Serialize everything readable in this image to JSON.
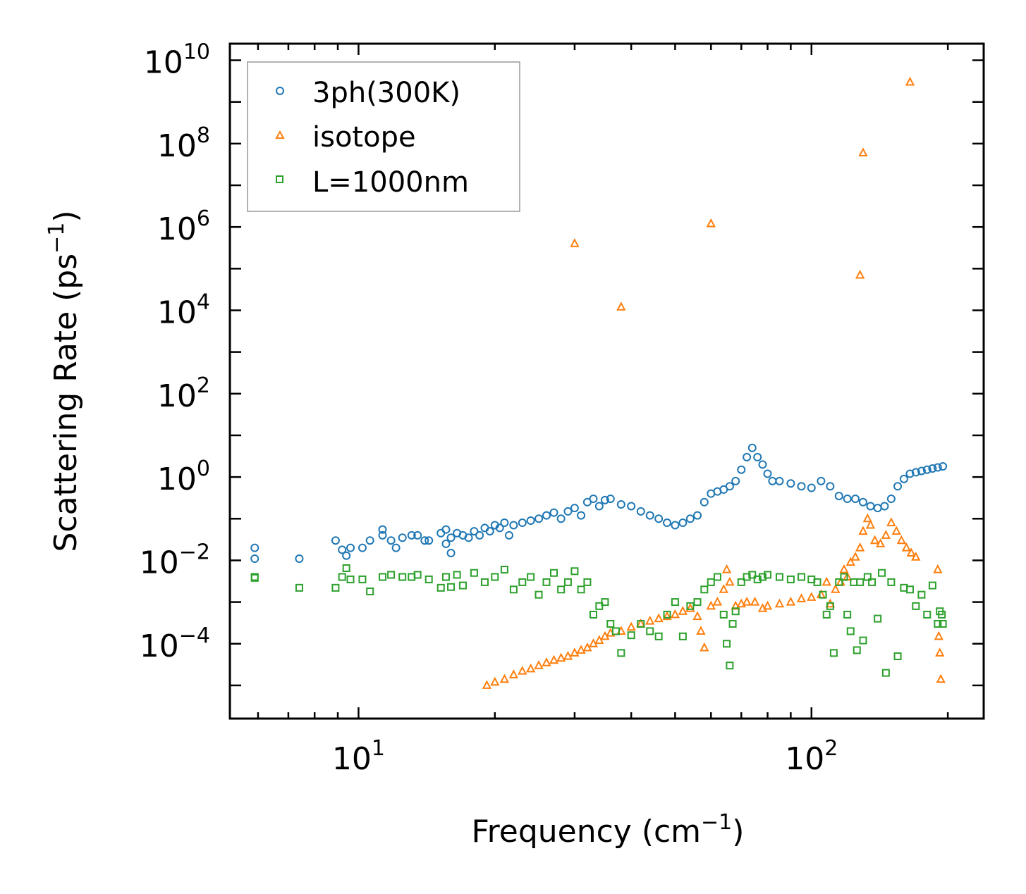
{
  "chart_data": {
    "type": "scatter",
    "xscale": "log",
    "yscale": "log",
    "xlim": [
      5.2,
      240
    ],
    "ylim": [
      1.6e-06,
      25000000000
    ],
    "xlabel": {
      "base": "Frequency (cm",
      "sup": "−1",
      "tail": ")"
    },
    "ylabel": {
      "base": "Scattering Rate (ps",
      "sup": "−1",
      "tail": ")"
    },
    "xticks": [
      {
        "value": 10,
        "base": "10",
        "exp": "1"
      },
      {
        "value": 100,
        "base": "10",
        "exp": "2"
      }
    ],
    "yticks": [
      {
        "value": 0.0001,
        "base": "10",
        "exp": "−4"
      },
      {
        "value": 0.01,
        "base": "10",
        "exp": "−2"
      },
      {
        "value": 1,
        "base": "10",
        "exp": "0"
      },
      {
        "value": 100,
        "base": "10",
        "exp": "2"
      },
      {
        "value": 10000,
        "base": "10",
        "exp": "4"
      },
      {
        "value": 1000000,
        "base": "10",
        "exp": "6"
      },
      {
        "value": 100000000,
        "base": "10",
        "exp": "8"
      },
      {
        "value": 10000000000,
        "base": "10",
        "exp": "10"
      }
    ],
    "legend": {
      "position": "top-left"
    },
    "series": [
      {
        "name": "3ph(300K)",
        "marker": "circle",
        "color": "#1f77b4",
        "points": [
          [
            5.9,
            0.02
          ],
          [
            5.9,
            0.011
          ],
          [
            7.4,
            0.011
          ],
          [
            8.9,
            0.03
          ],
          [
            9.2,
            0.018
          ],
          [
            9.4,
            0.013
          ],
          [
            9.6,
            0.02
          ],
          [
            10.2,
            0.02
          ],
          [
            10.6,
            0.03
          ],
          [
            11.3,
            0.055
          ],
          [
            11.3,
            0.04
          ],
          [
            11.8,
            0.03
          ],
          [
            12.1,
            0.02
          ],
          [
            12.5,
            0.035
          ],
          [
            13.1,
            0.04
          ],
          [
            13.5,
            0.04
          ],
          [
            14.0,
            0.03
          ],
          [
            14.3,
            0.03
          ],
          [
            15.2,
            0.045
          ],
          [
            15.6,
            0.055
          ],
          [
            15.6,
            0.025
          ],
          [
            16.0,
            0.035
          ],
          [
            16.0,
            0.015
          ],
          [
            16.5,
            0.045
          ],
          [
            17.0,
            0.04
          ],
          [
            17.5,
            0.035
          ],
          [
            18.0,
            0.05
          ],
          [
            18.5,
            0.04
          ],
          [
            19.0,
            0.06
          ],
          [
            19.5,
            0.05
          ],
          [
            20.0,
            0.07
          ],
          [
            20.5,
            0.06
          ],
          [
            21.0,
            0.08
          ],
          [
            21.5,
            0.04
          ],
          [
            22.0,
            0.07
          ],
          [
            23.0,
            0.08
          ],
          [
            24.0,
            0.09
          ],
          [
            25.0,
            0.1
          ],
          [
            26.0,
            0.12
          ],
          [
            27.0,
            0.14
          ],
          [
            28.0,
            0.1
          ],
          [
            29.0,
            0.15
          ],
          [
            30.0,
            0.18
          ],
          [
            31.0,
            0.12
          ],
          [
            32.0,
            0.25
          ],
          [
            33.0,
            0.3
          ],
          [
            34.0,
            0.2
          ],
          [
            35.0,
            0.28
          ],
          [
            36.0,
            0.3
          ],
          [
            38.0,
            0.22
          ],
          [
            40.0,
            0.2
          ],
          [
            42.0,
            0.15
          ],
          [
            44.0,
            0.12
          ],
          [
            46.0,
            0.1
          ],
          [
            48.0,
            0.08
          ],
          [
            50.0,
            0.07
          ],
          [
            52.0,
            0.08
          ],
          [
            54.0,
            0.1
          ],
          [
            56.0,
            0.12
          ],
          [
            58.0,
            0.25
          ],
          [
            60.0,
            0.4
          ],
          [
            62.0,
            0.45
          ],
          [
            64.0,
            0.5
          ],
          [
            66.0,
            0.6
          ],
          [
            68.0,
            0.8
          ],
          [
            70.0,
            1.5
          ],
          [
            72.0,
            3.0
          ],
          [
            74.0,
            5.0
          ],
          [
            76.0,
            3.0
          ],
          [
            78.0,
            2.0
          ],
          [
            80.0,
            1.2
          ],
          [
            82.0,
            0.8
          ],
          [
            85.0,
            0.8
          ],
          [
            90.0,
            0.7
          ],
          [
            95.0,
            0.6
          ],
          [
            100.0,
            0.55
          ],
          [
            105.0,
            0.8
          ],
          [
            110.0,
            0.6
          ],
          [
            115.0,
            0.35
          ],
          [
            120.0,
            0.3
          ],
          [
            125.0,
            0.3
          ],
          [
            130.0,
            0.25
          ],
          [
            135.0,
            0.2
          ],
          [
            140.0,
            0.18
          ],
          [
            145.0,
            0.2
          ],
          [
            150.0,
            0.3
          ],
          [
            155.0,
            0.6
          ],
          [
            160.0,
            0.9
          ],
          [
            165.0,
            1.2
          ],
          [
            170.0,
            1.3
          ],
          [
            175.0,
            1.4
          ],
          [
            180.0,
            1.5
          ],
          [
            185.0,
            1.6
          ],
          [
            190.0,
            1.7
          ],
          [
            195.0,
            1.8
          ]
        ]
      },
      {
        "name": "isotope",
        "marker": "triangle",
        "color": "#ff7f0e",
        "points": [
          [
            19.2,
            1e-05
          ],
          [
            20.0,
            1.2e-05
          ],
          [
            21.0,
            1.4e-05
          ],
          [
            22.0,
            1.8e-05
          ],
          [
            23.0,
            2.2e-05
          ],
          [
            24.0,
            2.5e-05
          ],
          [
            25.0,
            3e-05
          ],
          [
            26.0,
            3.5e-05
          ],
          [
            27.0,
            4e-05
          ],
          [
            28.0,
            4.5e-05
          ],
          [
            29.0,
            5e-05
          ],
          [
            30.0,
            6e-05
          ],
          [
            31.0,
            7e-05
          ],
          [
            32.0,
            8e-05
          ],
          [
            33.0,
            0.0001
          ],
          [
            34.0,
            0.00012
          ],
          [
            35.0,
            0.00015
          ],
          [
            36.0,
            0.00018
          ],
          [
            38.0,
            0.0002
          ],
          [
            40.0,
            0.00025
          ],
          [
            42.0,
            0.0003
          ],
          [
            44.0,
            0.00035
          ],
          [
            46.0,
            0.0004
          ],
          [
            48.0,
            0.00045
          ],
          [
            50.0,
            0.0005
          ],
          [
            52.0,
            0.0006
          ],
          [
            54.0,
            0.0007
          ],
          [
            56.0,
            0.00045
          ],
          [
            57.0,
            0.0002
          ],
          [
            58.0,
            8e-05
          ],
          [
            60.0,
            0.0008
          ],
          [
            62.0,
            0.001
          ],
          [
            64.0,
            0.002
          ],
          [
            65.0,
            0.006
          ],
          [
            66.0,
            0.003
          ],
          [
            68.0,
            0.0008
          ],
          [
            70.0,
            0.0009
          ],
          [
            72.0,
            0.001
          ],
          [
            75.0,
            0.001
          ],
          [
            78.0,
            0.0007
          ],
          [
            80.0,
            0.0008
          ],
          [
            85.0,
            0.0009
          ],
          [
            90.0,
            0.001
          ],
          [
            95.0,
            0.0012
          ],
          [
            100.0,
            0.0013
          ],
          [
            105.0,
            0.0015
          ],
          [
            108.0,
            0.003
          ],
          [
            110.0,
            0.0009
          ],
          [
            113.0,
            0.002
          ],
          [
            116.0,
            0.003
          ],
          [
            118.0,
            0.006
          ],
          [
            120.0,
            0.004
          ],
          [
            122.0,
            0.009
          ],
          [
            125.0,
            0.012
          ],
          [
            128.0,
            0.02
          ],
          [
            130.0,
            0.05
          ],
          [
            133.0,
            0.1
          ],
          [
            135.0,
            0.07
          ],
          [
            138.0,
            0.03
          ],
          [
            142.0,
            0.025
          ],
          [
            146.0,
            0.04
          ],
          [
            150.0,
            0.08
          ],
          [
            154.0,
            0.05
          ],
          [
            158.0,
            0.03
          ],
          [
            162.0,
            0.02
          ],
          [
            166.0,
            0.015
          ],
          [
            170.0,
            0.012
          ],
          [
            30.0,
            400000
          ],
          [
            38.0,
            12000
          ],
          [
            60.0,
            1200000
          ],
          [
            128.0,
            70000
          ],
          [
            130.0,
            60000000
          ],
          [
            165.0,
            3000000000
          ],
          [
            190.0,
            0.006
          ],
          [
            192.0,
            6e-05
          ],
          [
            193.0,
            1.4e-05
          ],
          [
            191.0,
            0.00015
          ]
        ]
      },
      {
        "name": "L=1000nm",
        "marker": "square",
        "color": "#2ca02c",
        "points": [
          [
            5.9,
            0.004
          ],
          [
            5.9,
            0.0038
          ],
          [
            7.4,
            0.0022
          ],
          [
            8.9,
            0.0022
          ],
          [
            9.2,
            0.004
          ],
          [
            9.4,
            0.0065
          ],
          [
            9.6,
            0.0035
          ],
          [
            10.2,
            0.0035
          ],
          [
            10.6,
            0.0018
          ],
          [
            11.3,
            0.004
          ],
          [
            11.8,
            0.0045
          ],
          [
            12.5,
            0.004
          ],
          [
            13.1,
            0.004
          ],
          [
            13.5,
            0.0045
          ],
          [
            14.3,
            0.0035
          ],
          [
            15.2,
            0.0022
          ],
          [
            15.6,
            0.004
          ],
          [
            16.0,
            0.0023
          ],
          [
            16.5,
            0.0045
          ],
          [
            17.0,
            0.0025
          ],
          [
            18.0,
            0.005
          ],
          [
            19.0,
            0.003
          ],
          [
            20.0,
            0.004
          ],
          [
            21.0,
            0.006
          ],
          [
            22.0,
            0.002
          ],
          [
            23.0,
            0.003
          ],
          [
            24.0,
            0.004
          ],
          [
            25.0,
            0.0015
          ],
          [
            26.0,
            0.003
          ],
          [
            27.0,
            0.005
          ],
          [
            28.0,
            0.002
          ],
          [
            29.0,
            0.003
          ],
          [
            30.0,
            0.0055
          ],
          [
            31.0,
            0.002
          ],
          [
            32.0,
            0.003
          ],
          [
            33.0,
            0.0005
          ],
          [
            34.0,
            0.0008
          ],
          [
            35.0,
            0.001
          ],
          [
            36.0,
            0.0003
          ],
          [
            37.0,
            0.0002
          ],
          [
            38.0,
            6e-05
          ],
          [
            40.0,
            0.00016
          ],
          [
            42.0,
            0.0003
          ],
          [
            44.0,
            0.0002
          ],
          [
            46.0,
            0.00015
          ],
          [
            48.0,
            0.0005
          ],
          [
            50.0,
            0.001
          ],
          [
            52.0,
            0.00015
          ],
          [
            54.0,
            0.0008
          ],
          [
            56.0,
            0.001
          ],
          [
            58.0,
            0.002
          ],
          [
            60.0,
            0.003
          ],
          [
            62.0,
            0.004
          ],
          [
            64.0,
            0.0005
          ],
          [
            65.0,
            0.0001
          ],
          [
            66.0,
            3e-05
          ],
          [
            67.0,
            0.0003
          ],
          [
            68.0,
            0.0006
          ],
          [
            70.0,
            0.003
          ],
          [
            72.0,
            0.004
          ],
          [
            74.0,
            0.0045
          ],
          [
            76.0,
            0.0035
          ],
          [
            78.0,
            0.004
          ],
          [
            80.0,
            0.0045
          ],
          [
            85.0,
            0.004
          ],
          [
            90.0,
            0.0035
          ],
          [
            95.0,
            0.004
          ],
          [
            100.0,
            0.0035
          ],
          [
            103.0,
            0.003
          ],
          [
            106.0,
            0.0015
          ],
          [
            108.0,
            0.0005
          ],
          [
            110.0,
            0.0008
          ],
          [
            112.0,
            6e-05
          ],
          [
            115.0,
            0.003
          ],
          [
            118.0,
            0.004
          ],
          [
            120.0,
            0.0005
          ],
          [
            122.0,
            0.0002
          ],
          [
            124.0,
            0.003
          ],
          [
            126.0,
            7e-05
          ],
          [
            128.0,
            0.003
          ],
          [
            130.0,
            0.00012
          ],
          [
            133.0,
            0.004
          ],
          [
            136.0,
            0.003
          ],
          [
            140.0,
            0.0004
          ],
          [
            143.0,
            0.005
          ],
          [
            146.0,
            2e-05
          ],
          [
            150.0,
            0.003
          ],
          [
            155.0,
            5e-05
          ],
          [
            160.0,
            0.0022
          ],
          [
            165.0,
            0.002
          ],
          [
            170.0,
            0.0008
          ],
          [
            175.0,
            0.0015
          ],
          [
            180.0,
            0.0005
          ],
          [
            185.0,
            0.0025
          ],
          [
            190.0,
            0.0003
          ],
          [
            192.0,
            0.0006
          ],
          [
            194.0,
            0.0005
          ],
          [
            195.0,
            0.0003
          ]
        ]
      }
    ]
  }
}
